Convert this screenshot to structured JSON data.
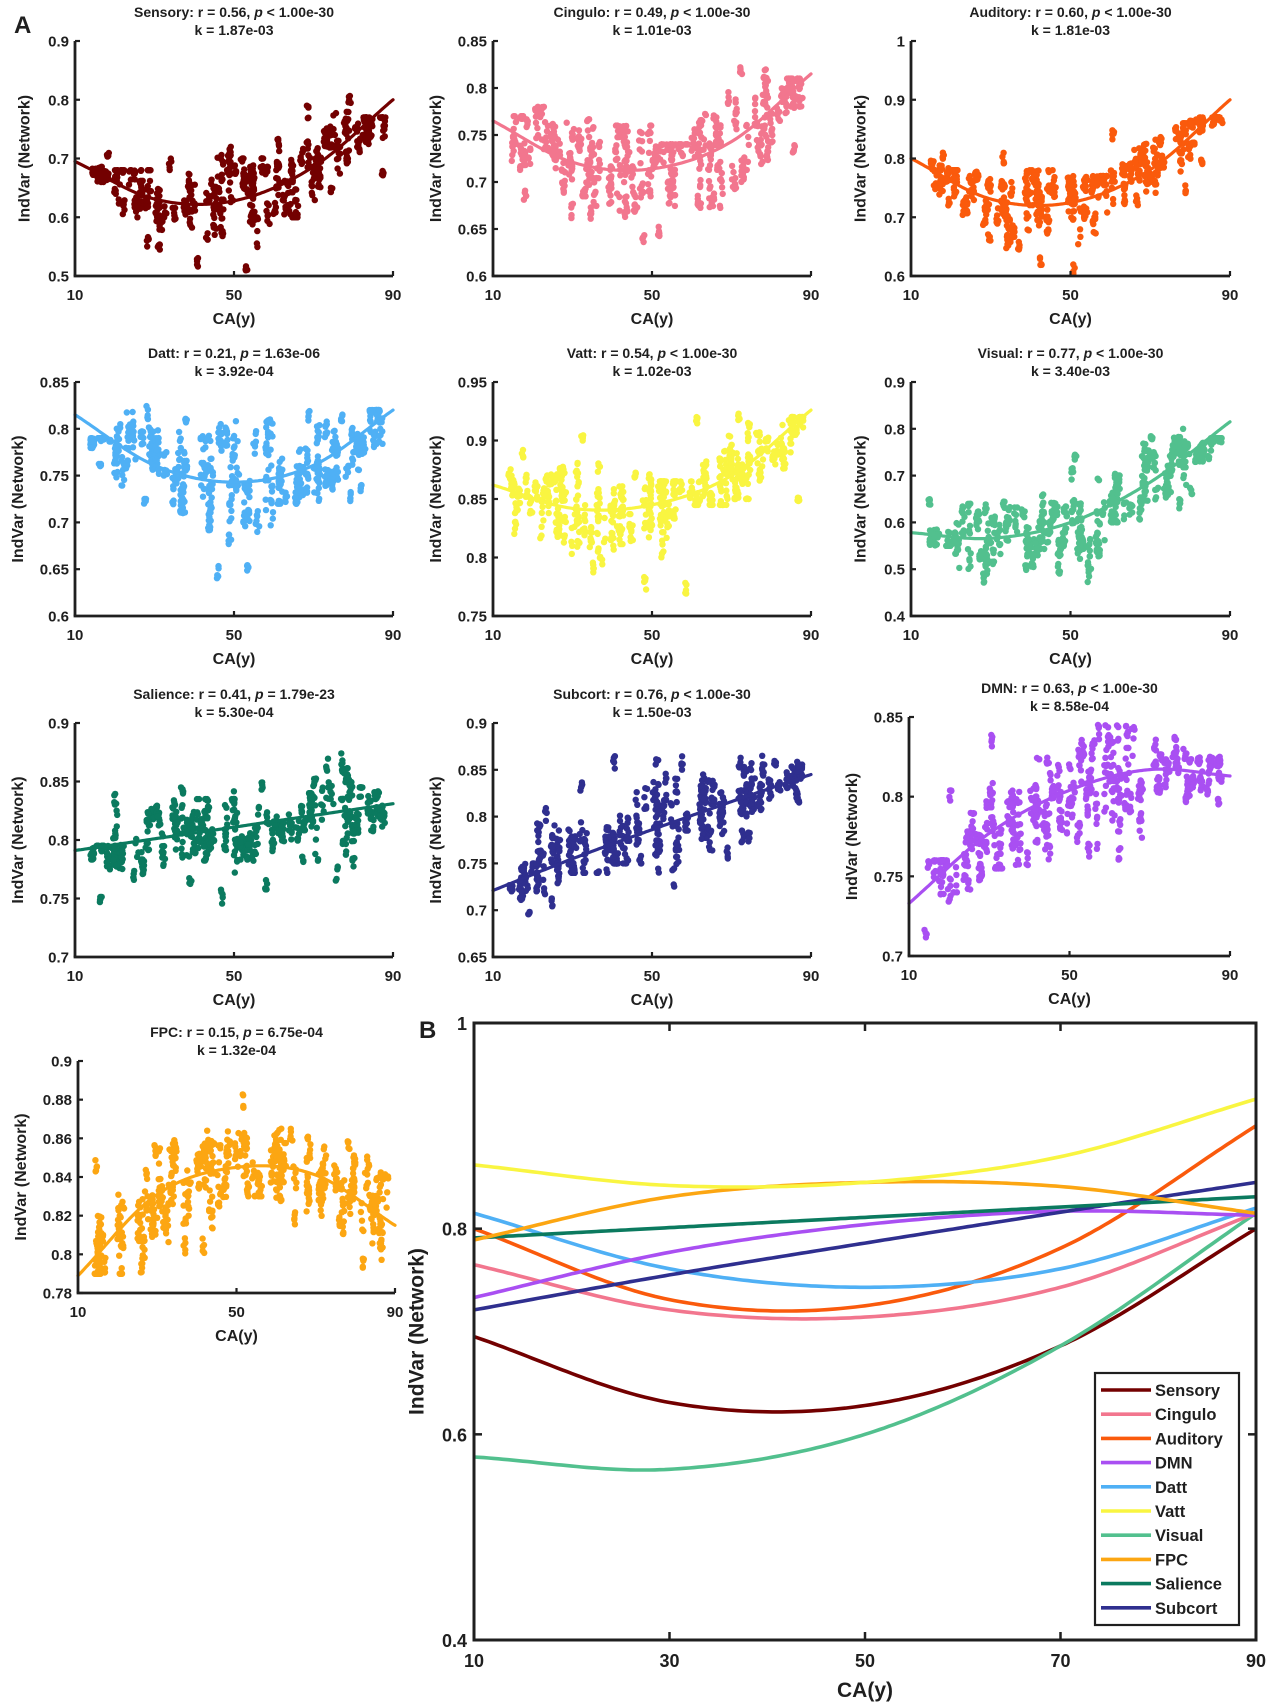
{
  "figure": {
    "panel_a_label": "A",
    "panel_b_label": "B"
  },
  "chart_data": [
    {
      "panel": "A",
      "type": "scatter",
      "xlabel": "CA(y)",
      "ylabel": "IndVar (Network)",
      "xlim": [
        10,
        90
      ],
      "xticks": [
        10,
        50,
        90
      ],
      "xtick_labels": [
        "10",
        "50",
        "90"
      ],
      "fit_x": [
        10,
        30,
        50,
        70,
        90
      ],
      "subplots": [
        {
          "network": "Sensory",
          "color": "#730000",
          "r": "0.56",
          "p_op": "<",
          "p_value": "1.00e-30",
          "k": "1.87e-03",
          "ylim": [
            0.5,
            0.9
          ],
          "yticks": [
            0.5,
            0.6,
            0.7,
            0.8,
            0.9
          ],
          "ytick_labels": [
            "0.5",
            "0.6",
            "0.7",
            "0.8",
            "0.9"
          ],
          "fit": [
            0.695,
            0.631,
            0.628,
            0.686,
            0.8
          ],
          "scatter_bins": [
            [
              14,
              20,
              0.66,
              0.71
            ],
            [
              20,
              30,
              0.55,
              0.68
            ],
            [
              30,
              40,
              0.54,
              0.7
            ],
            [
              40,
              50,
              0.5,
              0.72
            ],
            [
              50,
              60,
              0.5,
              0.7
            ],
            [
              60,
              70,
              0.6,
              0.79
            ],
            [
              70,
              80,
              0.64,
              0.81
            ],
            [
              80,
              88,
              0.67,
              0.77
            ]
          ]
        },
        {
          "network": "Cingulo",
          "color": "#f2768e",
          "r": "0.49",
          "p_op": "<",
          "p_value": "1.00e-30",
          "k": "1.01e-03",
          "ylim": [
            0.6,
            0.85
          ],
          "yticks": [
            0.6,
            0.65,
            0.7,
            0.75,
            0.8,
            0.85
          ],
          "ytick_labels": [
            "0.6",
            "0.65",
            "0.7",
            "0.75",
            "0.8",
            "0.85"
          ],
          "fit": [
            0.765,
            0.721,
            0.714,
            0.743,
            0.815
          ],
          "scatter_bins": [
            [
              15,
              20,
              0.68,
              0.77
            ],
            [
              20,
              30,
              0.66,
              0.78
            ],
            [
              30,
              40,
              0.66,
              0.77
            ],
            [
              40,
              50,
              0.625,
              0.76
            ],
            [
              50,
              60,
              0.64,
              0.74
            ],
            [
              60,
              70,
              0.67,
              0.8
            ],
            [
              70,
              80,
              0.69,
              0.835
            ],
            [
              80,
              88,
              0.73,
              0.81
            ]
          ]
        },
        {
          "network": "Auditory",
          "color": "#fa5a0c",
          "r": "0.60",
          "p_op": "<",
          "p_value": "1.00e-30",
          "k": "1.81e-03",
          "ylim": [
            0.6,
            1.0
          ],
          "yticks": [
            0.6,
            0.7,
            0.8,
            0.9,
            1.0
          ],
          "ytick_labels": [
            "0.6",
            "0.7",
            "0.8",
            "0.9",
            "1"
          ],
          "fit": [
            0.8,
            0.731,
            0.725,
            0.781,
            0.9
          ],
          "scatter_bins": [
            [
              15,
              20,
              0.72,
              0.81
            ],
            [
              20,
              30,
              0.66,
              0.78
            ],
            [
              30,
              40,
              0.64,
              0.81
            ],
            [
              40,
              50,
              0.61,
              0.78
            ],
            [
              50,
              60,
              0.6,
              0.77
            ],
            [
              60,
              70,
              0.72,
              0.85
            ],
            [
              70,
              80,
              0.74,
              0.86
            ],
            [
              80,
              88,
              0.79,
              0.87
            ]
          ]
        },
        {
          "network": "Datt",
          "color": "#4fb0f5",
          "r": "0.21",
          "p_op": "=",
          "p_value": "1.63e-06",
          "k": "3.92e-04",
          "ylim": [
            0.6,
            0.85
          ],
          "yticks": [
            0.6,
            0.65,
            0.7,
            0.75,
            0.8,
            0.85
          ],
          "ytick_labels": [
            "0.6",
            "0.65",
            "0.7",
            "0.75",
            "0.8",
            "0.85"
          ],
          "fit": [
            0.815,
            0.761,
            0.743,
            0.761,
            0.82
          ],
          "scatter_bins": [
            [
              14,
              20,
              0.76,
              0.79
            ],
            [
              20,
              30,
              0.71,
              0.825
            ],
            [
              30,
              40,
              0.71,
              0.815
            ],
            [
              40,
              50,
              0.635,
              0.805
            ],
            [
              50,
              60,
              0.645,
              0.81
            ],
            [
              60,
              70,
              0.72,
              0.82
            ],
            [
              70,
              80,
              0.72,
              0.82
            ],
            [
              80,
              88,
              0.73,
              0.82
            ]
          ]
        },
        {
          "network": "Vatt",
          "color": "#f9f541",
          "r": "0.54",
          "p_op": "<",
          "p_value": "1.00e-30",
          "k": "1.02e-03",
          "ylim": [
            0.75,
            0.95
          ],
          "yticks": [
            0.75,
            0.8,
            0.85,
            0.9,
            0.95
          ],
          "ytick_labels": [
            "0.75",
            "0.8",
            "0.85",
            "0.9",
            "0.95"
          ],
          "fit": [
            0.862,
            0.842,
            0.845,
            0.87,
            0.926
          ],
          "scatter_bins": [
            [
              14,
              20,
              0.82,
              0.895
            ],
            [
              20,
              30,
              0.81,
              0.88
            ],
            [
              30,
              40,
              0.78,
              0.905
            ],
            [
              40,
              50,
              0.77,
              0.875
            ],
            [
              50,
              60,
              0.765,
              0.865
            ],
            [
              60,
              70,
              0.845,
              0.925
            ],
            [
              70,
              80,
              0.85,
              0.925
            ],
            [
              80,
              88,
              0.845,
              0.92
            ]
          ]
        },
        {
          "network": "Visual",
          "color": "#52c08e",
          "r": "0.77",
          "p_op": "<",
          "p_value": "1.00e-30",
          "k": "3.40e-03",
          "ylim": [
            0.4,
            0.9
          ],
          "yticks": [
            0.4,
            0.5,
            0.6,
            0.7,
            0.8,
            0.9
          ],
          "ytick_labels": [
            "0.4",
            "0.5",
            "0.6",
            "0.7",
            "0.8",
            "0.9"
          ],
          "fit": [
            0.578,
            0.566,
            0.6,
            0.686,
            0.815
          ],
          "scatter_bins": [
            [
              14,
              20,
              0.55,
              0.65
            ],
            [
              20,
              30,
              0.47,
              0.64
            ],
            [
              30,
              40,
              0.49,
              0.65
            ],
            [
              40,
              50,
              0.49,
              0.66
            ],
            [
              50,
              60,
              0.47,
              0.75
            ],
            [
              60,
              70,
              0.6,
              0.77
            ],
            [
              70,
              80,
              0.63,
              0.8
            ],
            [
              80,
              88,
              0.66,
              0.78
            ]
          ]
        },
        {
          "network": "Salience",
          "color": "#0b7a5f",
          "r": "0.41",
          "p_op": "=",
          "p_value": "1.79e-23",
          "k": "5.30e-04",
          "ylim": [
            0.7,
            0.9
          ],
          "yticks": [
            0.7,
            0.75,
            0.8,
            0.85,
            0.9
          ],
          "ytick_labels": [
            "0.7",
            "0.75",
            "0.8",
            "0.85",
            "0.9"
          ],
          "fit": [
            0.791,
            0.801,
            0.811,
            0.821,
            0.831
          ],
          "scatter_bins": [
            [
              14,
              20,
              0.745,
              0.795
            ],
            [
              20,
              30,
              0.765,
              0.84
            ],
            [
              30,
              40,
              0.76,
              0.845
            ],
            [
              40,
              50,
              0.745,
              0.835
            ],
            [
              50,
              60,
              0.755,
              0.85
            ],
            [
              60,
              70,
              0.78,
              0.84
            ],
            [
              70,
              80,
              0.765,
              0.875
            ],
            [
              80,
              88,
              0.775,
              0.845
            ]
          ]
        },
        {
          "network": "Subcort",
          "color": "#2f2f8f",
          "r": "0.76",
          "p_op": "<",
          "p_value": "1.00e-30",
          "k": "1.50e-03",
          "ylim": [
            0.65,
            0.9
          ],
          "yticks": [
            0.65,
            0.7,
            0.75,
            0.8,
            0.85,
            0.9
          ],
          "ytick_labels": [
            "0.65",
            "0.7",
            "0.75",
            "0.8",
            "0.85",
            "0.9"
          ],
          "fit": [
            0.721,
            0.755,
            0.786,
            0.816,
            0.845
          ],
          "scatter_bins": [
            [
              14,
              20,
              0.69,
              0.75
            ],
            [
              20,
              30,
              0.7,
              0.81
            ],
            [
              30,
              40,
              0.74,
              0.84
            ],
            [
              40,
              50,
              0.75,
              0.865
            ],
            [
              50,
              60,
              0.725,
              0.865
            ],
            [
              60,
              70,
              0.755,
              0.845
            ],
            [
              70,
              80,
              0.77,
              0.865
            ],
            [
              80,
              88,
              0.815,
              0.86
            ]
          ]
        },
        {
          "network": "DMN",
          "color": "#a94ff2",
          "r": "0.63",
          "p_op": "<",
          "p_value": "1.00e-30",
          "k": "8.58e-04",
          "ylim": [
            0.7,
            0.85
          ],
          "yticks": [
            0.7,
            0.75,
            0.8,
            0.85
          ],
          "ytick_labels": [
            "0.7",
            "0.75",
            "0.8",
            "0.85"
          ],
          "fit": [
            0.733,
            0.777,
            0.804,
            0.817,
            0.813
          ],
          "scatter_bins": [
            [
              14,
              20,
              0.71,
              0.76
            ],
            [
              20,
              30,
              0.74,
              0.805
            ],
            [
              30,
              40,
              0.755,
              0.84
            ],
            [
              40,
              50,
              0.76,
              0.83
            ],
            [
              50,
              60,
              0.76,
              0.845
            ],
            [
              60,
              70,
              0.76,
              0.845
            ],
            [
              70,
              80,
              0.795,
              0.84
            ],
            [
              80,
              88,
              0.795,
              0.825
            ]
          ]
        },
        {
          "network": "FPC",
          "color": "#fca612",
          "r": "0.15",
          "p_op": "=",
          "p_value": "6.75e-04",
          "k": "1.32e-04",
          "ylim": [
            0.78,
            0.9
          ],
          "yticks": [
            0.78,
            0.8,
            0.82,
            0.84,
            0.86,
            0.88,
            0.9
          ],
          "ytick_labels": [
            "0.78",
            "0.8",
            "0.82",
            "0.84",
            "0.86",
            "0.88",
            "0.9"
          ],
          "fit": [
            0.789,
            0.831,
            0.845,
            0.841,
            0.815
          ],
          "scatter_bins": [
            [
              14,
              20,
              0.79,
              0.85
            ],
            [
              20,
              30,
              0.79,
              0.86
            ],
            [
              30,
              40,
              0.8,
              0.86
            ],
            [
              40,
              50,
              0.8,
              0.865
            ],
            [
              50,
              60,
              0.83,
              0.883
            ],
            [
              60,
              70,
              0.815,
              0.865
            ],
            [
              70,
              80,
              0.81,
              0.86
            ],
            [
              80,
              88,
              0.79,
              0.852
            ]
          ]
        }
      ]
    },
    {
      "panel": "B",
      "type": "line",
      "xlabel": "CA(y)",
      "ylabel": "IndVar (Network)",
      "xlim": [
        10,
        90
      ],
      "ylim": [
        0.4,
        1.0
      ],
      "xticks": [
        10,
        30,
        50,
        70,
        90
      ],
      "xtick_labels": [
        "10",
        "30",
        "50",
        "70",
        "90"
      ],
      "yticks": [
        0.4,
        0.6,
        0.8,
        1.0
      ],
      "ytick_labels": [
        "0.4",
        "0.6",
        "0.8",
        "1"
      ],
      "grid": false,
      "legend_position": "bottom-right",
      "x": [
        10,
        30,
        50,
        70,
        90
      ],
      "series": [
        {
          "name": "Sensory",
          "color": "#730000",
          "values": [
            0.695,
            0.631,
            0.628,
            0.686,
            0.8
          ]
        },
        {
          "name": "Cingulo",
          "color": "#f2768e",
          "values": [
            0.765,
            0.721,
            0.714,
            0.743,
            0.815
          ]
        },
        {
          "name": "Auditory",
          "color": "#fa5a0c",
          "values": [
            0.8,
            0.731,
            0.725,
            0.781,
            0.9
          ]
        },
        {
          "name": "DMN",
          "color": "#a94ff2",
          "values": [
            0.733,
            0.777,
            0.804,
            0.817,
            0.813
          ]
        },
        {
          "name": "Datt",
          "color": "#4fb0f5",
          "values": [
            0.815,
            0.761,
            0.743,
            0.761,
            0.82
          ]
        },
        {
          "name": "Vatt",
          "color": "#f9f541",
          "values": [
            0.862,
            0.842,
            0.845,
            0.87,
            0.926
          ]
        },
        {
          "name": "Visual",
          "color": "#52c08e",
          "values": [
            0.578,
            0.566,
            0.6,
            0.686,
            0.815
          ]
        },
        {
          "name": "FPC",
          "color": "#fca612",
          "values": [
            0.789,
            0.831,
            0.845,
            0.841,
            0.815
          ]
        },
        {
          "name": "Salience",
          "color": "#0b7a5f",
          "values": [
            0.791,
            0.801,
            0.811,
            0.821,
            0.831
          ]
        },
        {
          "name": "Subcort",
          "color": "#2f2f8f",
          "values": [
            0.721,
            0.755,
            0.786,
            0.816,
            0.845
          ]
        }
      ]
    }
  ]
}
